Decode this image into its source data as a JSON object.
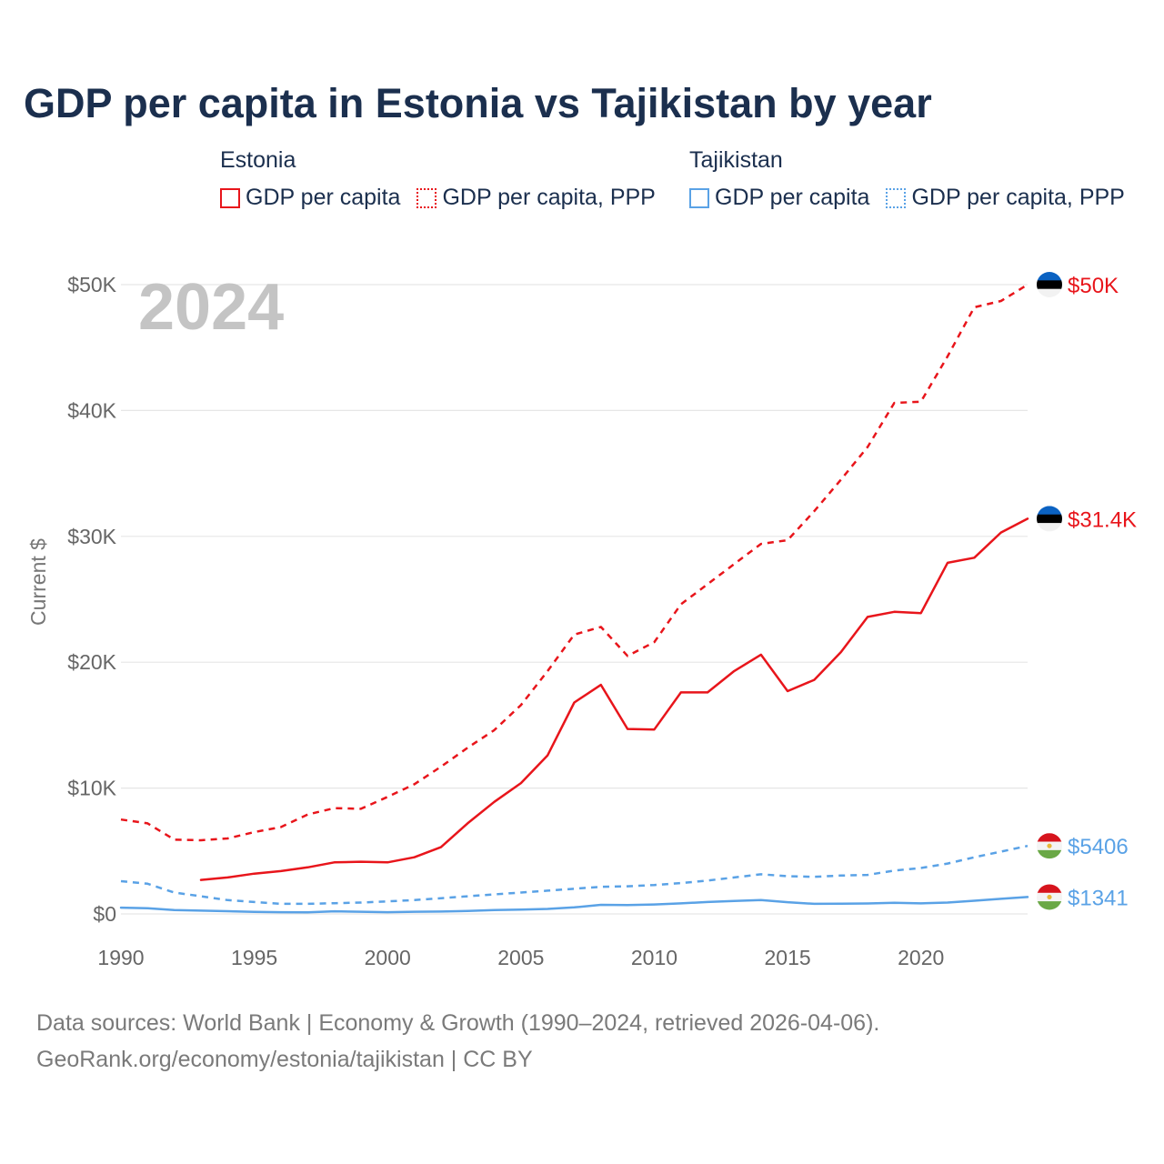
{
  "chart_data": {
    "type": "line",
    "title": "GDP per capita in Estonia vs Tajikistan by year",
    "ylabel": "Current $",
    "xlabel": "",
    "ylim": [
      0,
      50000
    ],
    "xlim": [
      1990,
      2024
    ],
    "x_ticks": [
      1990,
      1995,
      2000,
      2005,
      2010,
      2015,
      2020
    ],
    "x_tick_labels": [
      "1990",
      "1995",
      "2000",
      "2005",
      "2010",
      "2015",
      "2020"
    ],
    "y_ticks": [
      0,
      10000,
      20000,
      30000,
      40000,
      50000
    ],
    "y_tick_labels": [
      "$0",
      "$10K",
      "$20K",
      "$30K",
      "$40K",
      "$50K"
    ],
    "year_watermark": "2024",
    "grid": true,
    "series": [
      {
        "country": "Estonia",
        "name": "GDP per capita",
        "color": "#e8151b",
        "dash": "solid",
        "end_label": "$31.4K",
        "flag": "estonia-flag",
        "x": [
          1993,
          1994,
          1995,
          1996,
          1997,
          1998,
          1999,
          2000,
          2001,
          2002,
          2003,
          2004,
          2005,
          2006,
          2007,
          2008,
          2009,
          2010,
          2011,
          2012,
          2013,
          2014,
          2015,
          2016,
          2017,
          2018,
          2019,
          2020,
          2021,
          2022,
          2023,
          2024
        ],
        "values": [
          2700,
          2900,
          3200,
          3400,
          3700,
          4100,
          4150,
          4100,
          4500,
          5300,
          7200,
          8900,
          10400,
          12600,
          16800,
          18200,
          14700,
          14650,
          17600,
          17600,
          19300,
          20600,
          17700,
          18600,
          20800,
          23600,
          24000,
          23900,
          27900,
          28300,
          30300,
          31400
        ]
      },
      {
        "country": "Estonia",
        "name": "GDP per capita, PPP",
        "color": "#e8151b",
        "dash": "dashed",
        "end_label": "$50K",
        "flag": "estonia-flag",
        "x": [
          1990,
          1991,
          1992,
          1993,
          1994,
          1995,
          1996,
          1997,
          1998,
          1999,
          2000,
          2001,
          2002,
          2003,
          2004,
          2005,
          2006,
          2007,
          2008,
          2009,
          2010,
          2011,
          2012,
          2013,
          2014,
          2015,
          2016,
          2017,
          2018,
          2019,
          2020,
          2021,
          2022,
          2023,
          2024
        ],
        "values": [
          7500,
          7200,
          5900,
          5850,
          6000,
          6500,
          6900,
          7900,
          8400,
          8350,
          9300,
          10300,
          11700,
          13200,
          14600,
          16600,
          19300,
          22200,
          22800,
          20500,
          21600,
          24600,
          26200,
          27800,
          29400,
          29700,
          32000,
          34500,
          37100,
          40600,
          40700,
          44300,
          48200,
          48700,
          50000
        ]
      },
      {
        "country": "Tajikistan",
        "name": "GDP per capita",
        "color": "#5aa2e6",
        "dash": "solid",
        "end_label": "$1341",
        "flag": "tajikistan-flag",
        "x": [
          1990,
          1991,
          1992,
          1993,
          1994,
          1995,
          1996,
          1997,
          1998,
          1999,
          2000,
          2001,
          2002,
          2003,
          2004,
          2005,
          2006,
          2007,
          2008,
          2009,
          2010,
          2011,
          2012,
          2013,
          2014,
          2015,
          2016,
          2017,
          2018,
          2019,
          2020,
          2021,
          2022,
          2023,
          2024
        ],
        "values": [
          500,
          450,
          300,
          260,
          220,
          160,
          140,
          130,
          210,
          170,
          140,
          170,
          190,
          240,
          310,
          340,
          400,
          520,
          720,
          700,
          750,
          840,
          950,
          1030,
          1100,
          930,
          800,
          820,
          830,
          880,
          840,
          900,
          1050,
          1200,
          1341
        ]
      },
      {
        "country": "Tajikistan",
        "name": "GDP per capita, PPP",
        "color": "#5aa2e6",
        "dash": "dashed",
        "end_label": "$5406",
        "flag": "tajikistan-flag",
        "x": [
          1990,
          1991,
          1992,
          1993,
          1994,
          1995,
          1996,
          1997,
          1998,
          1999,
          2000,
          2001,
          2002,
          2003,
          2004,
          2005,
          2006,
          2007,
          2008,
          2009,
          2010,
          2011,
          2012,
          2013,
          2014,
          2015,
          2016,
          2017,
          2018,
          2019,
          2020,
          2021,
          2022,
          2023,
          2024
        ],
        "values": [
          2600,
          2400,
          1700,
          1400,
          1100,
          950,
          800,
          800,
          850,
          900,
          1000,
          1100,
          1250,
          1400,
          1550,
          1700,
          1850,
          2000,
          2150,
          2200,
          2300,
          2450,
          2650,
          2900,
          3150,
          3000,
          2950,
          3050,
          3100,
          3450,
          3650,
          4000,
          4500,
          4950,
          5406
        ]
      }
    ]
  },
  "legend": {
    "groups": [
      {
        "country": "Estonia",
        "items": [
          "GDP per capita",
          "GDP per capita, PPP"
        ]
      },
      {
        "country": "Tajikistan",
        "items": [
          "GDP per capita",
          "GDP per capita, PPP"
        ]
      }
    ]
  },
  "footer": {
    "sources": "Data sources: World Bank | Economy & Growth (1990–2024, retrieved 2026-04-06).",
    "credit": "GeoRank.org/economy/estonia/tajikistan | CC BY"
  },
  "colors": {
    "title": "#1b2f4e",
    "estonia": "#e8151b",
    "tajikistan": "#5aa2e6",
    "axis_text": "#666666",
    "grid": "#e6e6e6",
    "watermark": "#c4c4c4"
  }
}
